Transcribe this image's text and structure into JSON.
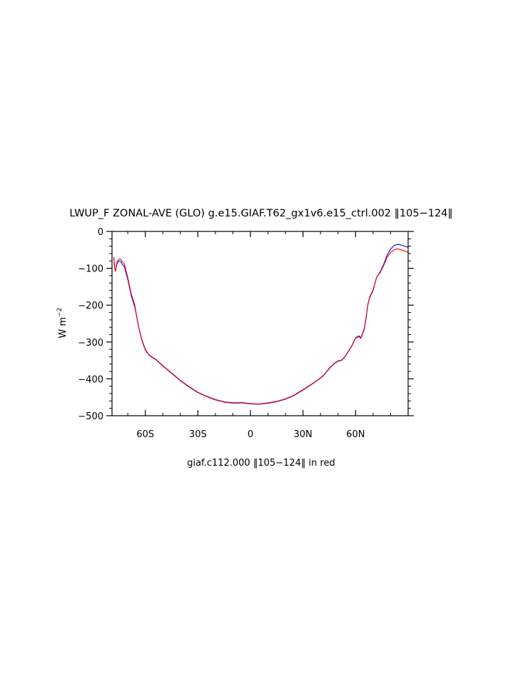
{
  "chart_data": {
    "type": "line",
    "title": "LWUP_F ZONAL-AVE (GLO) g.e15.GIAF.T62_gx1v6.e15_ctrl.002 ‖105−124‖",
    "ylabel_main": "W m",
    "ylabel_exp": "−2",
    "footer": "giaf.c112.000 ‖105−124‖ in red",
    "xlim": [
      -79,
      90
    ],
    "ylim": [
      -500,
      0
    ],
    "x_ticks": [
      {
        "value": -60,
        "label": "60S"
      },
      {
        "value": -30,
        "label": "30S"
      },
      {
        "value": 0,
        "label": "0"
      },
      {
        "value": 30,
        "label": "30N"
      },
      {
        "value": 60,
        "label": "60N"
      }
    ],
    "y_ticks": [
      {
        "value": 0,
        "label": "0"
      },
      {
        "value": -100,
        "label": "−100"
      },
      {
        "value": -200,
        "label": "−200"
      },
      {
        "value": -300,
        "label": "−300"
      },
      {
        "value": -400,
        "label": "−400"
      },
      {
        "value": -500,
        "label": "−500"
      }
    ],
    "grid": false,
    "series": [
      {
        "color": "#0000ff",
        "x": [
          -78,
          -77.5,
          -77,
          -76.5,
          -76,
          -75,
          -74,
          -73,
          -72,
          -70,
          -68,
          -66,
          -65,
          -64,
          -62,
          -60,
          -58,
          -56,
          -54,
          -52,
          -50,
          -45,
          -40,
          -35,
          -30,
          -25,
          -20,
          -15,
          -10,
          -5,
          0,
          5,
          10,
          15,
          20,
          25,
          30,
          35,
          40,
          42,
          45,
          48,
          50,
          52,
          54,
          56,
          58,
          60,
          62,
          63,
          64,
          65,
          66,
          67,
          68,
          70,
          72,
          74,
          76,
          78,
          80,
          82,
          84,
          86,
          88,
          90
        ],
        "y": [
          -70,
          -100,
          -108,
          -95,
          -85,
          -80,
          -82,
          -90,
          -95,
          -130,
          -175,
          -205,
          -230,
          -255,
          -295,
          -322,
          -335,
          -342,
          -348,
          -356,
          -365,
          -385,
          -405,
          -422,
          -437,
          -448,
          -457,
          -463,
          -466,
          -465,
          -468,
          -469,
          -466,
          -462,
          -455,
          -445,
          -430,
          -415,
          -398,
          -390,
          -372,
          -358,
          -352,
          -350,
          -340,
          -325,
          -310,
          -290,
          -285,
          -290,
          -278,
          -265,
          -235,
          -200,
          -180,
          -160,
          -125,
          -110,
          -90,
          -65,
          -48,
          -38,
          -35,
          -37,
          -40,
          -43
        ]
      },
      {
        "color": "#ff0000",
        "x": [
          -78,
          -77.5,
          -77,
          -76.5,
          -76,
          -75,
          -74,
          -73,
          -72,
          -70,
          -68,
          -66,
          -65,
          -64,
          -62,
          -60,
          -58,
          -56,
          -54,
          -52,
          -50,
          -45,
          -40,
          -35,
          -30,
          -25,
          -20,
          -15,
          -10,
          -5,
          0,
          5,
          10,
          15,
          20,
          25,
          30,
          35,
          40,
          42,
          45,
          48,
          50,
          52,
          54,
          56,
          58,
          60,
          62,
          63,
          64,
          65,
          66,
          67,
          68,
          70,
          72,
          74,
          76,
          78,
          80,
          82,
          84,
          86,
          88,
          90
        ],
        "y": [
          -70,
          -100,
          -108,
          -92,
          -80,
          -75,
          -76,
          -82,
          -88,
          -125,
          -170,
          -200,
          -228,
          -253,
          -293,
          -320,
          -334,
          -341,
          -347,
          -355,
          -364,
          -384,
          -404,
          -421,
          -436,
          -447,
          -456,
          -462,
          -465,
          -464,
          -467,
          -468,
          -465,
          -461,
          -454,
          -444,
          -429,
          -414,
          -397,
          -389,
          -371,
          -357,
          -351,
          -349,
          -339,
          -324,
          -309,
          -289,
          -283,
          -288,
          -276,
          -262,
          -232,
          -198,
          -178,
          -158,
          -124,
          -112,
          -93,
          -70,
          -57,
          -50,
          -47,
          -50,
          -53,
          -57
        ]
      }
    ]
  }
}
